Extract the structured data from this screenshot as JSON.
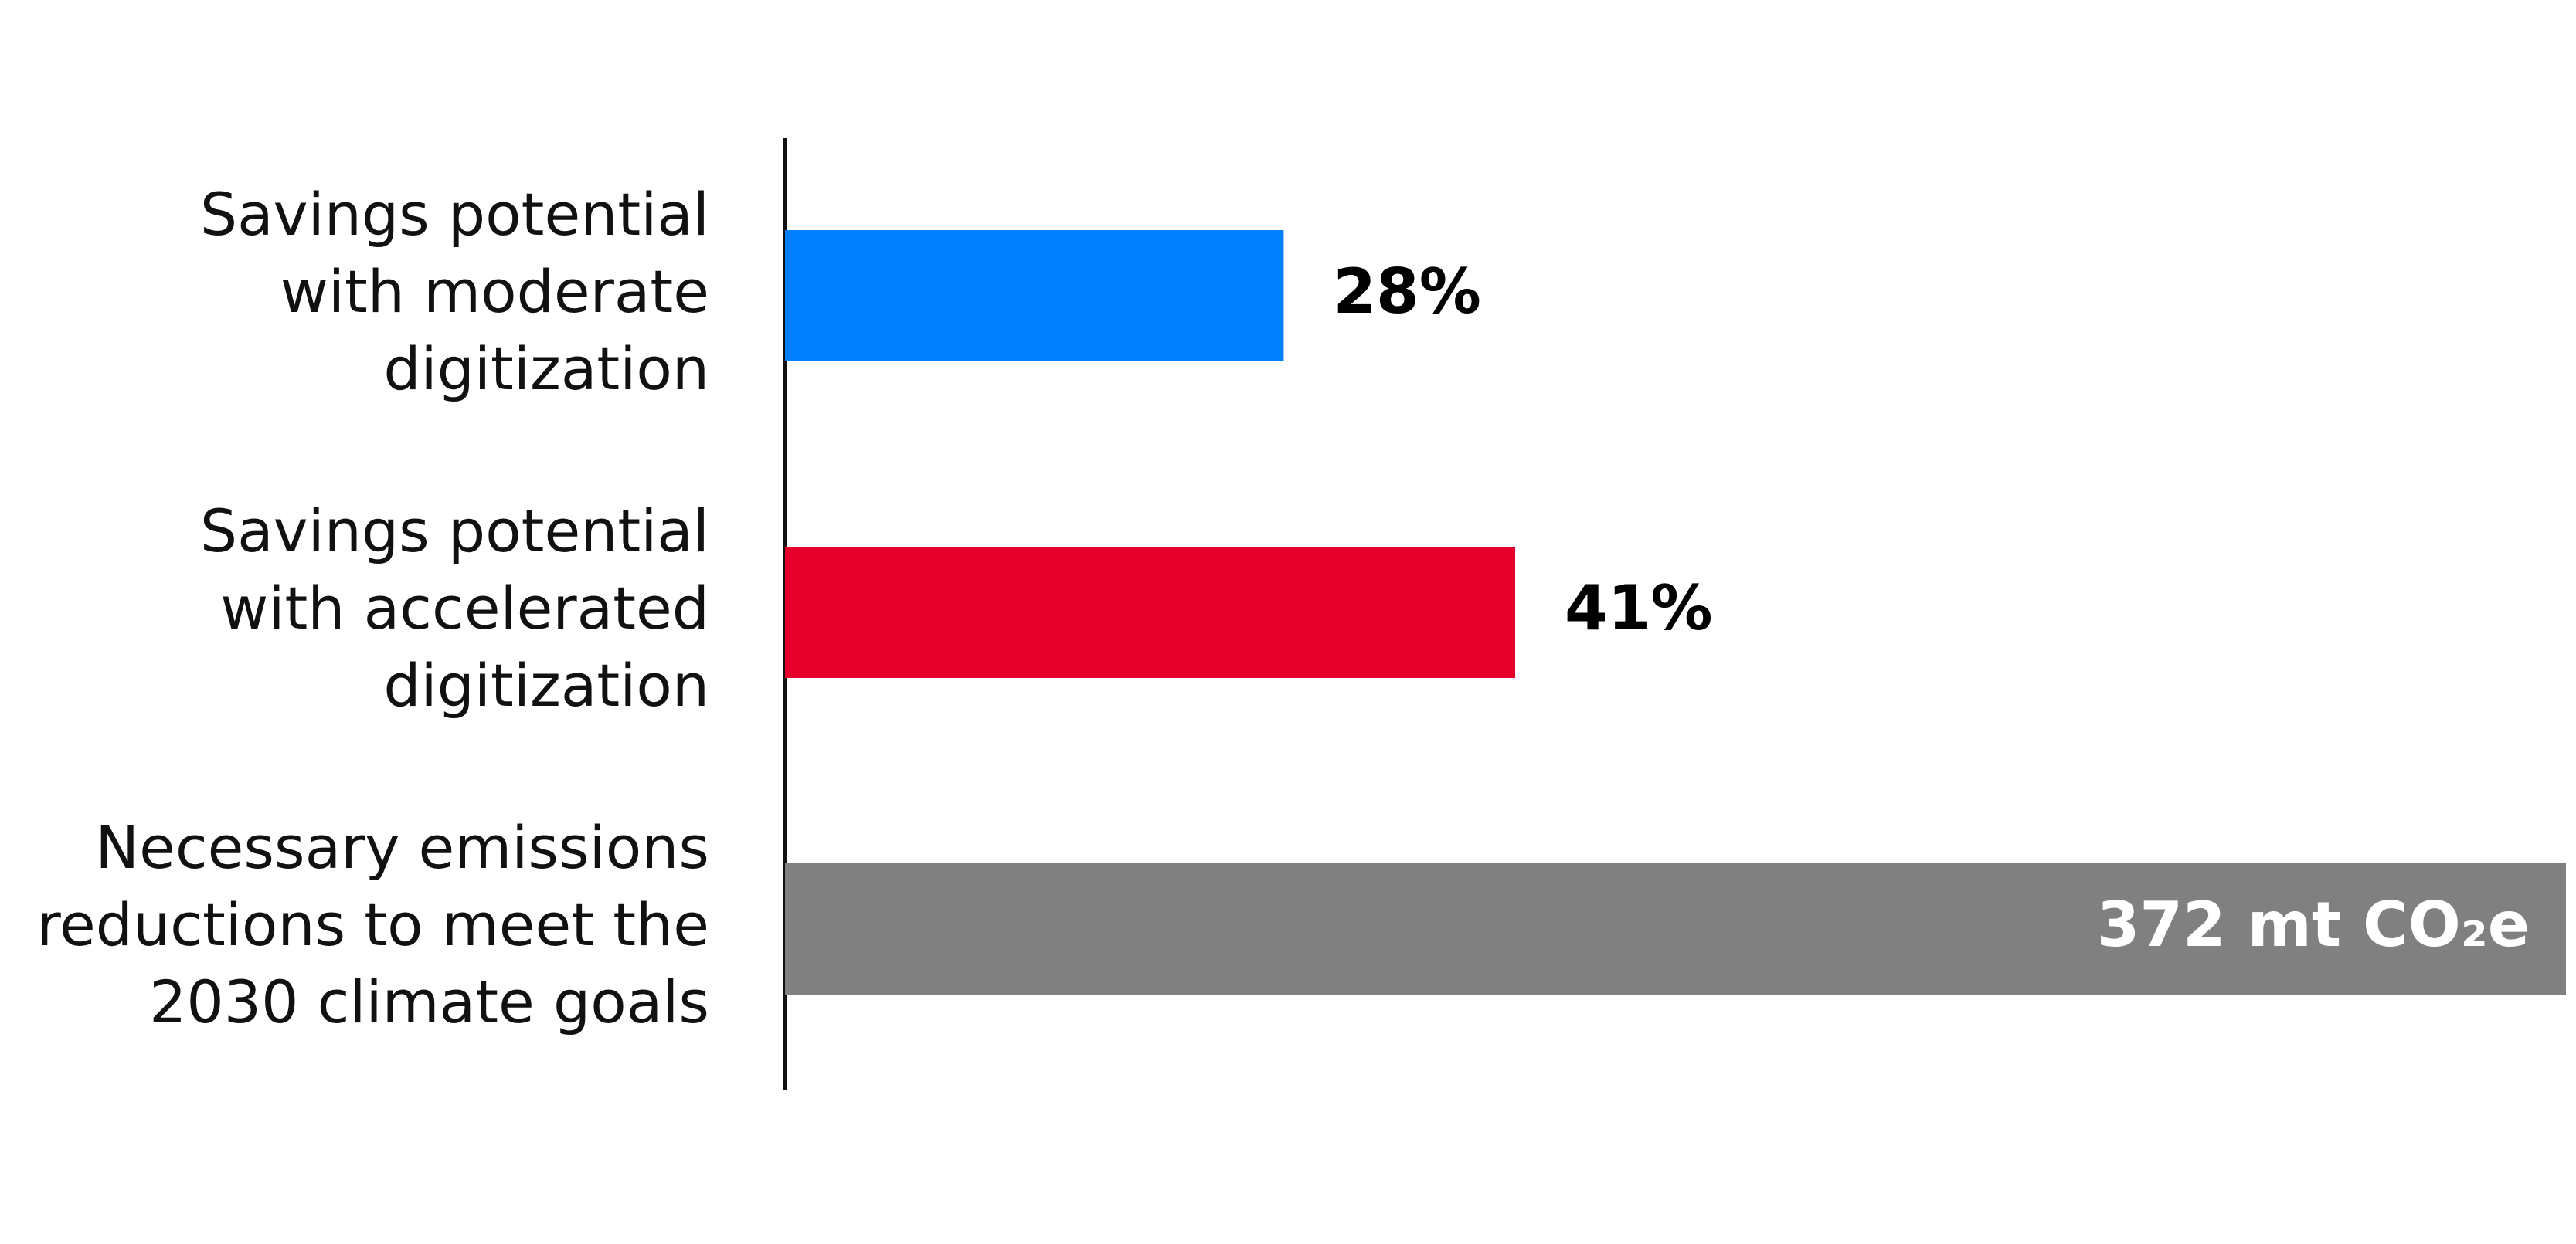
{
  "chart_data": {
    "type": "bar",
    "orientation": "horizontal",
    "categories": [
      [
        "Savings potential",
        "with moderate",
        "digitization"
      ],
      [
        "Savings potential",
        "with accelerated",
        "digitization"
      ]
    ],
    "values": [
      28,
      41
    ],
    "value_labels": [
      "28%",
      "41%"
    ],
    "colors": [
      "#0080ff",
      "#e4002b"
    ],
    "xlim": [
      0,
      100
    ],
    "reference": {
      "category": [
        "Necessary emissions",
        "reductions to meet the",
        "2030 climate goals"
      ],
      "value": 372,
      "label": "372 mt CO₂e",
      "color": "#808080"
    }
  }
}
